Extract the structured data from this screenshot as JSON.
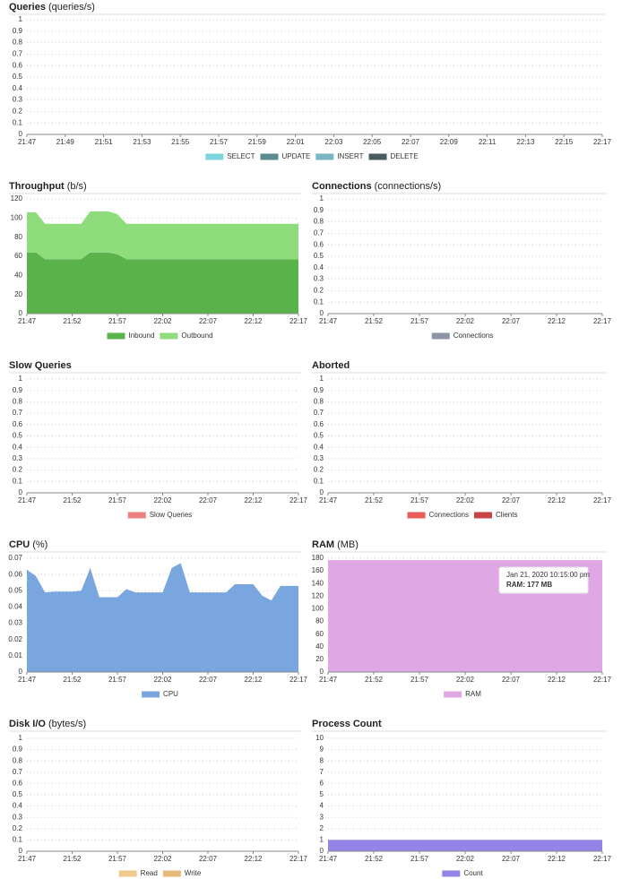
{
  "chart_data": [
    {
      "type": "line",
      "title": "Queries",
      "unit": "(queries/s)",
      "xlim": [
        "21:47",
        "22:17"
      ],
      "xticks": [
        "21:47",
        "21:49",
        "21:51",
        "21:53",
        "21:55",
        "21:57",
        "21:59",
        "22:01",
        "22:03",
        "22:05",
        "22:07",
        "22:09",
        "22:11",
        "22:13",
        "22:15",
        "22:17"
      ],
      "ylim": [
        0,
        1
      ],
      "yticks": [
        0,
        0.1,
        0.2,
        0.3,
        0.4,
        0.5,
        0.6,
        0.7,
        0.8,
        0.9,
        1
      ],
      "grid": true,
      "series": [
        {
          "name": "SELECT",
          "color": "#7fd3dd",
          "values": []
        },
        {
          "name": "UPDATE",
          "color": "#5c8a8e",
          "values": []
        },
        {
          "name": "INSERT",
          "color": "#7ab6c1",
          "values": []
        },
        {
          "name": "DELETE",
          "color": "#4a5b62",
          "values": []
        }
      ]
    },
    {
      "type": "area",
      "stacked": true,
      "title": "Throughput",
      "unit": "(b/s)",
      "x": [
        "21:47",
        "21:48",
        "21:49",
        "21:50",
        "21:51",
        "21:52",
        "21:53",
        "21:54",
        "21:55",
        "21:56",
        "21:57",
        "21:58",
        "21:59",
        "22:00",
        "22:01",
        "22:02",
        "22:03",
        "22:04",
        "22:05",
        "22:06",
        "22:07",
        "22:08",
        "22:09",
        "22:10",
        "22:11",
        "22:12",
        "22:13",
        "22:14",
        "22:15",
        "22:16",
        "22:17"
      ],
      "xlim": [
        "21:47",
        "22:17"
      ],
      "xticks": [
        "21:47",
        "21:52",
        "21:57",
        "22:02",
        "22:07",
        "22:12",
        "22:17"
      ],
      "ylim": [
        0,
        120
      ],
      "yticks": [
        0,
        20,
        40,
        60,
        80,
        100,
        120
      ],
      "grid": true,
      "series": [
        {
          "name": "Inbound",
          "color": "#5ab24a",
          "values": [
            64,
            64,
            57,
            57,
            57,
            57,
            57,
            64,
            64,
            64,
            62,
            57,
            57,
            57,
            57,
            57,
            57,
            57,
            57,
            57,
            57,
            57,
            57,
            57,
            57,
            57,
            57,
            57,
            57,
            57,
            57
          ]
        },
        {
          "name": "Outbound",
          "color": "#8fdc7c",
          "values": [
            42,
            42,
            37,
            37,
            37,
            37,
            37,
            43,
            43,
            43,
            42,
            37,
            37,
            37,
            37,
            37,
            37,
            37,
            37,
            37,
            37,
            37,
            37,
            37,
            37,
            37,
            37,
            37,
            37,
            37,
            37
          ]
        }
      ]
    },
    {
      "type": "line",
      "title": "Connections",
      "unit": "(connections/s)",
      "xlim": [
        "21:47",
        "22:17"
      ],
      "xticks": [
        "21:47",
        "21:52",
        "21:57",
        "22:02",
        "22:07",
        "22:12",
        "22:17"
      ],
      "ylim": [
        0,
        1
      ],
      "yticks": [
        0,
        0.1,
        0.2,
        0.3,
        0.4,
        0.5,
        0.6,
        0.7,
        0.8,
        0.9,
        1
      ],
      "grid": true,
      "series": [
        {
          "name": "Connections",
          "color": "#8a94a6",
          "values": []
        }
      ]
    },
    {
      "type": "line",
      "title": "Slow Queries",
      "xlim": [
        "21:47",
        "22:17"
      ],
      "xticks": [
        "21:47",
        "21:52",
        "21:57",
        "22:02",
        "22:07",
        "22:12",
        "22:17"
      ],
      "ylim": [
        0,
        1
      ],
      "yticks": [
        0,
        0.1,
        0.2,
        0.3,
        0.4,
        0.5,
        0.6,
        0.7,
        0.8,
        0.9,
        1
      ],
      "grid": true,
      "series": [
        {
          "name": "Slow Queries",
          "color": "#ee8080",
          "values": []
        }
      ]
    },
    {
      "type": "line",
      "title": "Aborted",
      "xlim": [
        "21:47",
        "22:17"
      ],
      "xticks": [
        "21:47",
        "21:52",
        "21:57",
        "22:02",
        "22:07",
        "22:12",
        "22:17"
      ],
      "ylim": [
        0,
        1
      ],
      "yticks": [
        0,
        0.1,
        0.2,
        0.3,
        0.4,
        0.5,
        0.6,
        0.7,
        0.8,
        0.9,
        1
      ],
      "grid": true,
      "series": [
        {
          "name": "Connections",
          "color": "#e85c5c",
          "values": []
        },
        {
          "name": "Clients",
          "color": "#c94545",
          "values": []
        }
      ]
    },
    {
      "type": "area",
      "title": "CPU",
      "unit": "(%)",
      "x": [
        "21:47",
        "21:48",
        "21:49",
        "21:50",
        "21:51",
        "21:52",
        "21:53",
        "21:54",
        "21:55",
        "21:56",
        "21:57",
        "21:58",
        "21:59",
        "22:00",
        "22:01",
        "22:02",
        "22:03",
        "22:04",
        "22:05",
        "22:06",
        "22:07",
        "22:08",
        "22:09",
        "22:10",
        "22:11",
        "22:12",
        "22:13",
        "22:14",
        "22:15",
        "22:16",
        "22:17"
      ],
      "xlim": [
        "21:47",
        "22:17"
      ],
      "xticks": [
        "21:47",
        "21:52",
        "21:57",
        "22:02",
        "22:07",
        "22:12",
        "22:17"
      ],
      "ylim": [
        0,
        0.07
      ],
      "yticks": [
        0,
        0.01,
        0.02,
        0.03,
        0.04,
        0.05,
        0.06,
        0.07
      ],
      "grid": true,
      "series": [
        {
          "name": "CPU",
          "color": "#7aa6e0",
          "values": [
            0.063,
            0.059,
            0.049,
            0.0495,
            0.0495,
            0.0495,
            0.05,
            0.064,
            0.046,
            0.046,
            0.046,
            0.051,
            0.049,
            0.049,
            0.049,
            0.049,
            0.064,
            0.067,
            0.049,
            0.049,
            0.049,
            0.049,
            0.049,
            0.054,
            0.054,
            0.054,
            0.047,
            0.044,
            0.053,
            0.053,
            0.053
          ]
        }
      ]
    },
    {
      "type": "area",
      "title": "RAM",
      "unit": "(MB)",
      "x": [
        "21:47",
        "22:17"
      ],
      "xlim": [
        "21:47",
        "22:17"
      ],
      "xticks": [
        "21:47",
        "21:52",
        "21:57",
        "22:02",
        "22:07",
        "22:12",
        "22:17"
      ],
      "ylim": [
        0,
        180
      ],
      "yticks": [
        0,
        20,
        40,
        60,
        80,
        100,
        120,
        140,
        160,
        180
      ],
      "grid": true,
      "series": [
        {
          "name": "RAM",
          "color": "#dfa8e4",
          "values": [
            177,
            177
          ]
        }
      ],
      "tooltip": {
        "title": "Jan 21, 2020 10:15:00 pm",
        "label": "RAM: 177 MB"
      }
    },
    {
      "type": "line",
      "title": "Disk I/O",
      "unit": "(bytes/s)",
      "xlim": [
        "21:47",
        "22:17"
      ],
      "xticks": [
        "21:47",
        "21:52",
        "21:57",
        "22:02",
        "22:07",
        "22:12",
        "22:17"
      ],
      "ylim": [
        0,
        1
      ],
      "yticks": [
        0,
        0.1,
        0.2,
        0.3,
        0.4,
        0.5,
        0.6,
        0.7,
        0.8,
        0.9,
        1
      ],
      "grid": true,
      "series": [
        {
          "name": "Read",
          "color": "#f0c98e",
          "values": []
        },
        {
          "name": "Write",
          "color": "#e7b97c",
          "values": []
        }
      ]
    },
    {
      "type": "area",
      "title": "Process Count",
      "x": [
        "21:47",
        "22:17"
      ],
      "xlim": [
        "21:47",
        "22:17"
      ],
      "xticks": [
        "21:47",
        "21:52",
        "21:57",
        "22:02",
        "22:07",
        "22:12",
        "22:17"
      ],
      "ylim": [
        0,
        10
      ],
      "yticks": [
        0,
        1,
        2,
        3,
        4,
        5,
        6,
        7,
        8,
        9,
        10
      ],
      "grid": true,
      "series": [
        {
          "name": "Count",
          "color": "#9384e8",
          "values": [
            1,
            1
          ]
        }
      ]
    }
  ]
}
